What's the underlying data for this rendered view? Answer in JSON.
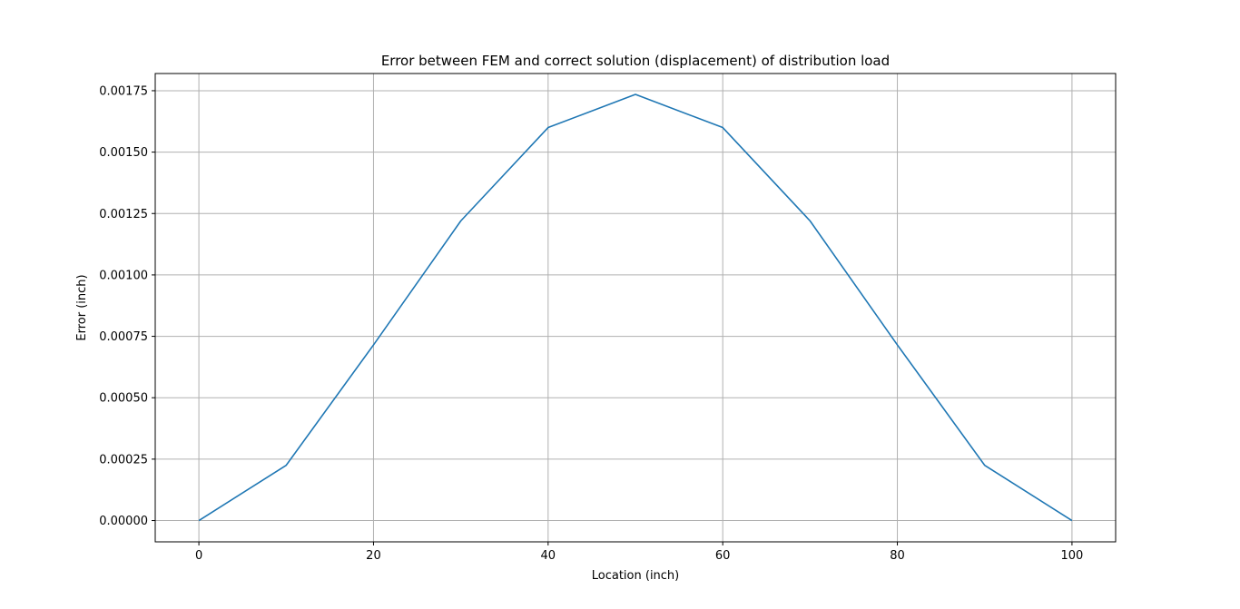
{
  "chart_data": {
    "type": "line",
    "title": "Error between FEM and correct solution (displacement) of distribution load",
    "xlabel": "Location (inch)",
    "ylabel": "Error (inch)",
    "xlim": [
      -5,
      105
    ],
    "ylim": [
      -8.67e-05,
      0.00182
    ],
    "x_ticks": [
      0,
      20,
      40,
      60,
      80,
      100
    ],
    "x_tick_labels": [
      "0",
      "20",
      "40",
      "60",
      "80",
      "100"
    ],
    "y_ticks": [
      0,
      0.00025,
      0.0005,
      0.00075,
      0.001,
      0.00125,
      0.0015,
      0.00175
    ],
    "y_tick_labels": [
      "0.00000",
      "0.00025",
      "0.00050",
      "0.00075",
      "0.00100",
      "0.00125",
      "0.00150",
      "0.00175"
    ],
    "grid": true,
    "series": [
      {
        "color": "#1f77b4",
        "x": [
          0,
          10,
          20,
          30,
          40,
          50,
          60,
          70,
          80,
          90,
          100
        ],
        "y": [
          0,
          0.000225,
          0.000715,
          0.00122,
          0.0016,
          0.001735,
          0.0016,
          0.00122,
          0.000715,
          0.000225,
          0
        ]
      }
    ]
  }
}
